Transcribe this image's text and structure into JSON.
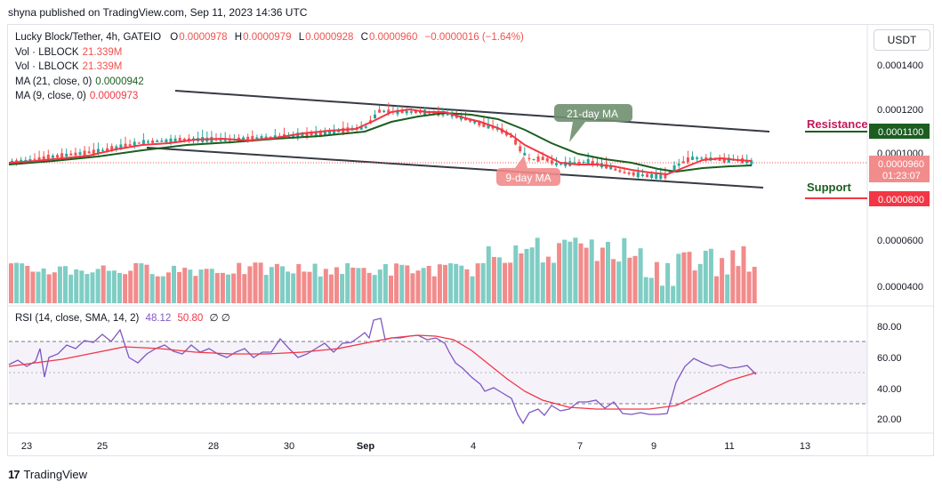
{
  "header": {
    "credit": "shyna published on TradingView.com, Sep 11, 2023 14:36 UTC"
  },
  "legend": {
    "symbol": "Lucky Block/Tether, 4h, GATEIO",
    "o_label": "O",
    "o": "0.0000978",
    "h_label": "H",
    "h": "0.0000979",
    "l_label": "L",
    "l": "0.0000928",
    "c_label": "C",
    "c": "0.0000960",
    "change": "−0.0000016 (−1.64%)",
    "vol1_label": "Vol · LBLOCK",
    "vol1": "21.339M",
    "vol2_label": "Vol · LBLOCK",
    "vol2": "21.339M",
    "ma21_label": "MA (21, close, 0)",
    "ma21": "0.0000942",
    "ma9_label": "MA (9, close, 0)",
    "ma9": "0.0000973",
    "rsi_label": "RSI (14, close, SMA, 14, 2)",
    "rsi": "48.12",
    "rsi_ma": "50.80",
    "rsi_extra": "∅ ∅"
  },
  "currency_button": "USDT",
  "annotations": {
    "ma21_callout": "21-day MA",
    "ma9_callout": "9-day MA",
    "resistance": "Resistance",
    "support": "Support"
  },
  "footer": {
    "brand": "TradingView",
    "logo_glyph": "17"
  },
  "colors": {
    "up": "#26a69a",
    "down": "#ef5350",
    "ma9": "#f23645",
    "ma21": "#1b5e20",
    "rsi": "#7e57c2",
    "rsi_ma": "#f23645",
    "resistance": "#c2185b",
    "support": "#1b5e20",
    "channel": "#363a45"
  },
  "chart_data": [
    {
      "type": "candlestick",
      "title": "Lucky Block/Tether, 4h, GATEIO",
      "y_ticks": [
        "0.0001400",
        "0.0001200",
        "0.0001000",
        "0.0000600",
        "0.0000400"
      ],
      "x_ticks": [
        "23",
        "25",
        "28",
        "30",
        "Sep",
        "4",
        "7",
        "9",
        "11",
        "13"
      ],
      "price_labels": {
        "last_price": "0.0000960",
        "countdown": "01:23:07",
        "resistance_level": "0.0001100",
        "support_level": "0.0000800"
      },
      "last_close": 9.6e-05,
      "resistance": 0.00011,
      "support": 8e-05,
      "series": [
        {
          "name": "MA (21, close, 0)",
          "last": 9.42e-05
        },
        {
          "name": "MA (9, close, 0)",
          "last": 9.73e-05
        }
      ],
      "trend_phases": [
        "uptrend Aug 23–Sep 1",
        "decline Sep 3–6",
        "sideways Sep 7–11"
      ]
    },
    {
      "type": "line",
      "title": "RSI (14, close, SMA, 14, 2)",
      "y_ticks": [
        "80.00",
        "60.00",
        "40.00",
        "20.00"
      ],
      "bands": [
        30,
        70
      ],
      "last_rsi": 48.12,
      "last_rsi_ma": 50.8
    }
  ]
}
